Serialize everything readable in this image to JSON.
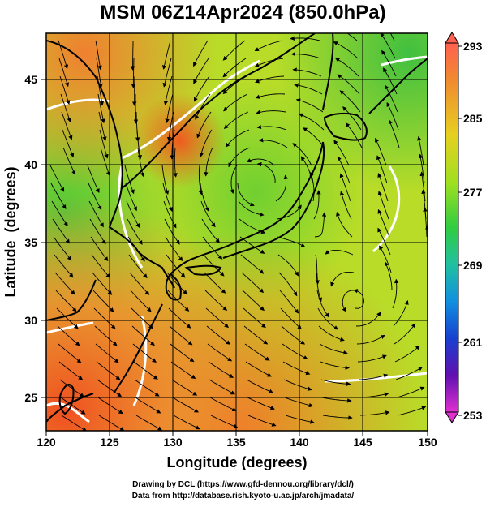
{
  "title": "MSM 06Z14Apr2024 (850.0hPa)",
  "xaxis": {
    "label": "Longitude (degrees)",
    "ticks": [
      "120",
      "125",
      "130",
      "135",
      "140",
      "145",
      "150"
    ]
  },
  "yaxis": {
    "label": "Latitude  (degrees)",
    "ticks": [
      "25",
      "30",
      "35",
      "40",
      "45"
    ]
  },
  "colorbar": {
    "labels": [
      "293",
      "285",
      "277",
      "269",
      "261",
      "253"
    ],
    "colors": [
      "#e0e000",
      "#a0e020",
      "#50d040",
      "#30c090",
      "#1080e0",
      "#2030d0",
      "#5000b0",
      "#d020c0"
    ]
  },
  "credits": {
    "line1": "Drawing by DCL (https://www.gfd-dennou.org/library/dcl/)",
    "line2": "Data from http://database.rish.kyoto-u.ac.jp/arch/jmadata/"
  },
  "colors": {
    "warm": "#f07a20",
    "mid": "#d8d020",
    "cool": "#50c840",
    "isotherm": "#ffffff",
    "coast": "#000000"
  }
}
